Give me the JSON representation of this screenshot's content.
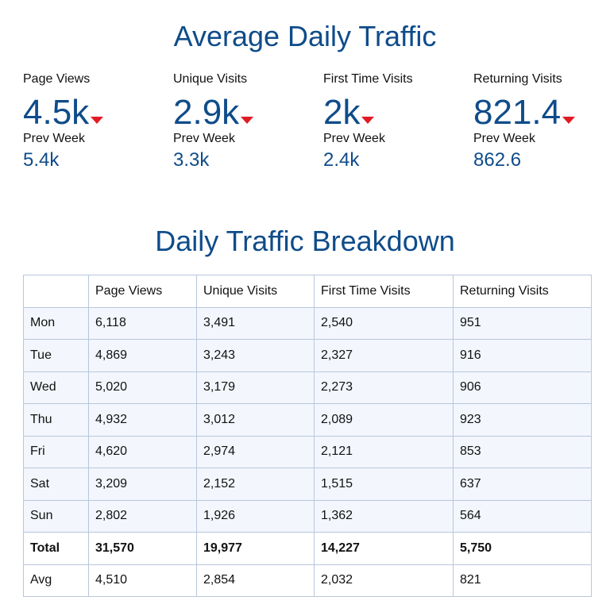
{
  "average": {
    "title": "Average Daily Traffic",
    "metrics": [
      {
        "label": "Page Views",
        "value": "4.5k",
        "prev_label": "Prev Week",
        "prev_value": "5.4k",
        "trend": "down"
      },
      {
        "label": "Unique Visits",
        "value": "2.9k",
        "prev_label": "Prev Week",
        "prev_value": "3.3k",
        "trend": "down"
      },
      {
        "label": "First Time Visits",
        "value": "2k",
        "prev_label": "Prev Week",
        "prev_value": "2.4k",
        "trend": "down"
      },
      {
        "label": "Returning Visits",
        "value": "821.4",
        "prev_label": "Prev Week",
        "prev_value": "862.6",
        "trend": "down"
      }
    ],
    "trend_icon": "down-triangle-icon",
    "trend_color": "#e01b24",
    "accent_color": "#0f4c8a"
  },
  "breakdown": {
    "title": "Daily Traffic Breakdown",
    "headers": [
      "",
      "Page Views",
      "Unique Visits",
      "First Time Visits",
      "Returning Visits"
    ],
    "rows": [
      [
        "Mon",
        "6,118",
        "3,491",
        "2,540",
        "951"
      ],
      [
        "Tue",
        "4,869",
        "3,243",
        "2,327",
        "916"
      ],
      [
        "Wed",
        "5,020",
        "3,179",
        "2,273",
        "906"
      ],
      [
        "Thu",
        "4,932",
        "3,012",
        "2,089",
        "923"
      ],
      [
        "Fri",
        "4,620",
        "2,974",
        "2,121",
        "853"
      ],
      [
        "Sat",
        "3,209",
        "2,152",
        "1,515",
        "637"
      ],
      [
        "Sun",
        "2,802",
        "1,926",
        "1,362",
        "564"
      ]
    ],
    "total": [
      "Total",
      "31,570",
      "19,977",
      "14,227",
      "5,750"
    ],
    "avg": [
      "Avg",
      "4,510",
      "2,854",
      "2,032",
      "821"
    ],
    "band_color": "#f3f7fd",
    "border_color": "#b8c7dc"
  }
}
